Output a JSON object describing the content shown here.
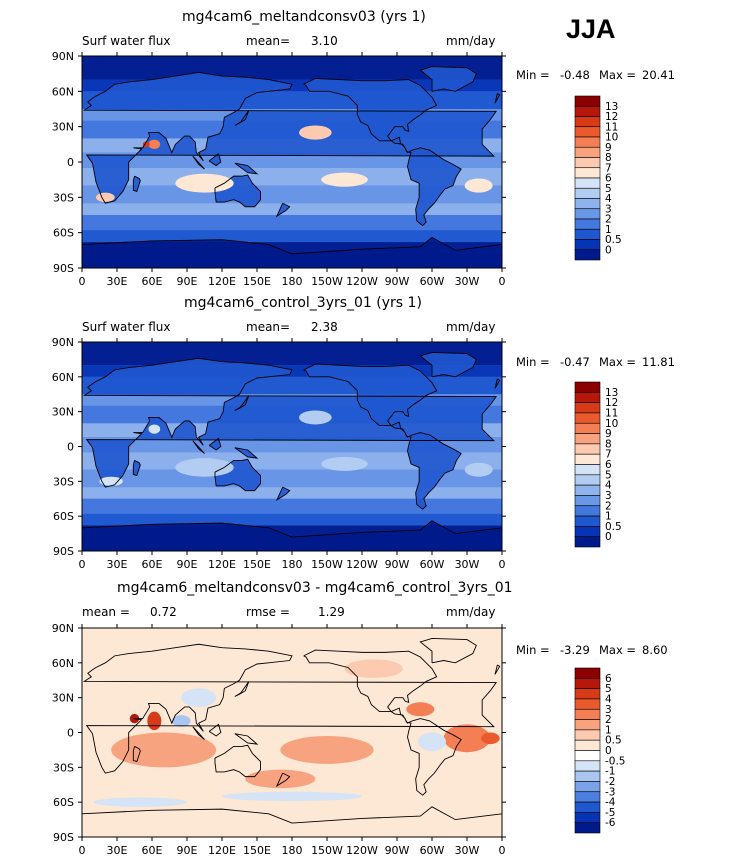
{
  "season": "JJA",
  "longitude_ticks": [
    "0",
    "30E",
    "60E",
    "90E",
    "120E",
    "150E",
    "180",
    "150W",
    "120W",
    "90W",
    "60W",
    "30W",
    "0"
  ],
  "latitude_ticks": [
    "90N",
    "60N",
    "30N",
    "0",
    "30S",
    "60S",
    "90S"
  ],
  "panels": [
    {
      "title": "mg4cam6_meltandconsv03 (yrs 1)",
      "variable": "Surf water flux",
      "stat_label": "mean=",
      "stat_value": "3.10",
      "stat2_label": "",
      "stat2_value": "",
      "units": "mm/day",
      "min_label": "Min =",
      "min_value": "-0.48",
      "max_label": "Max =",
      "max_value": "20.41",
      "colorbar_labels": [
        "13",
        "12",
        "11",
        "10",
        "9",
        "8",
        "7",
        "6",
        "5",
        "4",
        "3",
        "2",
        "1",
        "0.5",
        "0"
      ],
      "colors": [
        "#8b0000",
        "#b5180b",
        "#d63a16",
        "#eb5a2c",
        "#f47f54",
        "#f8a37f",
        "#fbcab0",
        "#fde7d5",
        "#d4e3f6",
        "#b2cdf1",
        "#8fb3ec",
        "#6a97e6",
        "#4478dd",
        "#1f57cf",
        "#0733b5",
        "#001a8c"
      ]
    },
    {
      "title": "mg4cam6_control_3yrs_01 (yrs 1)",
      "variable": "Surf water flux",
      "stat_label": "mean=",
      "stat_value": "2.38",
      "stat2_label": "",
      "stat2_value": "",
      "units": "mm/day",
      "min_label": "Min =",
      "min_value": "-0.47",
      "max_label": "Max =",
      "max_value": "11.81",
      "colorbar_labels": [
        "13",
        "12",
        "11",
        "10",
        "9",
        "8",
        "7",
        "6",
        "5",
        "4",
        "3",
        "2",
        "1",
        "0.5",
        "0"
      ],
      "colors": [
        "#8b0000",
        "#b5180b",
        "#d63a16",
        "#eb5a2c",
        "#f47f54",
        "#f8a37f",
        "#fbcab0",
        "#fde7d5",
        "#d4e3f6",
        "#b2cdf1",
        "#8fb3ec",
        "#6a97e6",
        "#4478dd",
        "#1f57cf",
        "#0733b5",
        "#001a8c"
      ]
    },
    {
      "title": "mg4cam6_meltandconsv03 - mg4cam6_control_3yrs_01",
      "variable": "",
      "stat_label": "mean =",
      "stat_value": "0.72",
      "stat2_label": "rmse =",
      "stat2_value": "1.29",
      "units": "mm/day",
      "min_label": "Min =",
      "min_value": "-3.29",
      "max_label": "Max =",
      "max_value": "8.60",
      "colorbar_labels": [
        "6",
        "5",
        "4",
        "3",
        "2",
        "1",
        "0.5",
        "0",
        "-0.5",
        "-1",
        "-2",
        "-3",
        "-4",
        "-5",
        "-6"
      ],
      "colors": [
        "#8b0000",
        "#b5180b",
        "#d63a16",
        "#eb5a2c",
        "#f47f54",
        "#f8a37f",
        "#fbcab0",
        "#fde7d5",
        "#ffffff",
        "#d4e3f6",
        "#a9c6f0",
        "#7ba3e8",
        "#4c7fde",
        "#1f57cf",
        "#0733b5",
        "#001a8c"
      ]
    }
  ]
}
